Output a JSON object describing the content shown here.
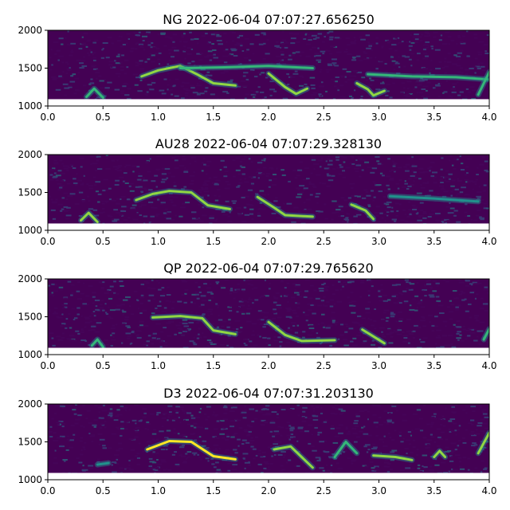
{
  "colors": {
    "background": "#440154",
    "dark": "#46085c",
    "mid": "#31688e",
    "teal": "#21918c",
    "green": "#35b779",
    "bright": "#90d743",
    "yellow": "#fde725"
  },
  "chart_data": [
    {
      "type": "heatmap",
      "title": "NG 2022-06-04 07:07:27.656250",
      "xlabel": "",
      "ylabel": "",
      "xlim": [
        0.0,
        4.0
      ],
      "ylim": [
        1000,
        2000
      ],
      "x_ticks": [
        "0.0",
        "0.5",
        "1.0",
        "1.5",
        "2.0",
        "2.5",
        "3.0",
        "3.5",
        "4.0"
      ],
      "y_ticks": [
        "1000",
        "1500",
        "2000"
      ],
      "colormap": "viridis",
      "grid": false,
      "masked_band_hz": [
        1000,
        1090
      ],
      "features": [
        {
          "points": [
            [
              0.35,
              1120
            ],
            [
              0.42,
              1230
            ],
            [
              0.5,
              1110
            ]
          ],
          "intensity": 0.6
        },
        {
          "points": [
            [
              0.85,
              1390
            ],
            [
              1.0,
              1470
            ],
            [
              1.2,
              1530
            ],
            [
              1.35,
              1420
            ],
            [
              1.5,
              1300
            ],
            [
              1.7,
              1270
            ]
          ],
          "intensity": 0.7
        },
        {
          "points": [
            [
              1.2,
              1500
            ],
            [
              1.6,
              1510
            ],
            [
              2.0,
              1530
            ],
            [
              2.4,
              1500
            ]
          ],
          "intensity": 0.5
        },
        {
          "points": [
            [
              2.0,
              1430
            ],
            [
              2.15,
              1250
            ],
            [
              2.25,
              1160
            ],
            [
              2.35,
              1230
            ]
          ],
          "intensity": 0.8
        },
        {
          "points": [
            [
              2.8,
              1300
            ],
            [
              2.9,
              1220
            ],
            [
              2.95,
              1140
            ],
            [
              3.05,
              1200
            ]
          ],
          "intensity": 0.8
        },
        {
          "points": [
            [
              2.9,
              1420
            ],
            [
              3.3,
              1390
            ],
            [
              3.7,
              1380
            ],
            [
              4.0,
              1350
            ]
          ],
          "intensity": 0.5
        },
        {
          "points": [
            [
              3.9,
              1150
            ],
            [
              3.95,
              1300
            ],
            [
              4.0,
              1450
            ]
          ],
          "intensity": 0.6
        }
      ]
    },
    {
      "type": "heatmap",
      "title": "AU28 2022-06-04 07:07:29.328130",
      "xlabel": "",
      "ylabel": "",
      "xlim": [
        0.0,
        4.0
      ],
      "ylim": [
        1000,
        2000
      ],
      "x_ticks": [
        "0.0",
        "0.5",
        "1.0",
        "1.5",
        "2.0",
        "2.5",
        "3.0",
        "3.5",
        "4.0"
      ],
      "y_ticks": [
        "1000",
        "1500",
        "2000"
      ],
      "colormap": "viridis",
      "grid": false,
      "masked_band_hz": [
        1000,
        1090
      ],
      "features": [
        {
          "points": [
            [
              0.3,
              1130
            ],
            [
              0.37,
              1230
            ],
            [
              0.45,
              1110
            ]
          ],
          "intensity": 0.8
        },
        {
          "points": [
            [
              0.8,
              1400
            ],
            [
              0.95,
              1480
            ],
            [
              1.1,
              1520
            ],
            [
              1.3,
              1500
            ],
            [
              1.45,
              1330
            ],
            [
              1.65,
              1280
            ]
          ],
          "intensity": 0.8
        },
        {
          "points": [
            [
              1.9,
              1440
            ],
            [
              2.05,
              1300
            ],
            [
              2.15,
              1200
            ],
            [
              2.4,
              1180
            ]
          ],
          "intensity": 0.8
        },
        {
          "points": [
            [
              2.75,
              1340
            ],
            [
              2.88,
              1260
            ],
            [
              2.95,
              1150
            ]
          ],
          "intensity": 0.8
        },
        {
          "points": [
            [
              3.1,
              1450
            ],
            [
              3.5,
              1420
            ],
            [
              3.9,
              1380
            ]
          ],
          "intensity": 0.4
        }
      ]
    },
    {
      "type": "heatmap",
      "title": "QP 2022-06-04 07:07:29.765620",
      "xlabel": "",
      "ylabel": "",
      "xlim": [
        0.0,
        4.0
      ],
      "ylim": [
        1000,
        2000
      ],
      "x_ticks": [
        "0.0",
        "0.5",
        "1.0",
        "1.5",
        "2.0",
        "2.5",
        "3.0",
        "3.5",
        "4.0"
      ],
      "y_ticks": [
        "1000",
        "1500",
        "2000"
      ],
      "colormap": "viridis",
      "grid": false,
      "masked_band_hz": [
        1000,
        1090
      ],
      "features": [
        {
          "points": [
            [
              0.4,
              1120
            ],
            [
              0.45,
              1200
            ],
            [
              0.5,
              1100
            ]
          ],
          "intensity": 0.5
        },
        {
          "points": [
            [
              0.95,
              1490
            ],
            [
              1.2,
              1510
            ],
            [
              1.4,
              1480
            ],
            [
              1.5,
              1320
            ],
            [
              1.7,
              1270
            ]
          ],
          "intensity": 0.8
        },
        {
          "points": [
            [
              2.0,
              1430
            ],
            [
              2.15,
              1260
            ],
            [
              2.3,
              1180
            ],
            [
              2.6,
              1190
            ]
          ],
          "intensity": 0.8
        },
        {
          "points": [
            [
              2.85,
              1330
            ],
            [
              2.95,
              1240
            ],
            [
              3.05,
              1150
            ]
          ],
          "intensity": 0.8
        },
        {
          "points": [
            [
              3.95,
              1200
            ],
            [
              4.0,
              1340
            ]
          ],
          "intensity": 0.5
        }
      ]
    },
    {
      "type": "heatmap",
      "title": "D3 2022-06-04 07:07:31.203130",
      "xlabel": "",
      "ylabel": "",
      "xlim": [
        0.0,
        4.0
      ],
      "ylim": [
        1000,
        2000
      ],
      "x_ticks": [
        "0.0",
        "0.5",
        "1.0",
        "1.5",
        "2.0",
        "2.5",
        "3.0",
        "3.5",
        "4.0"
      ],
      "y_ticks": [
        "1000",
        "1500",
        "2000"
      ],
      "colormap": "viridis",
      "grid": false,
      "masked_band_hz": [
        1000,
        1090
      ],
      "features": [
        {
          "points": [
            [
              0.45,
              1200
            ],
            [
              0.55,
              1220
            ]
          ],
          "intensity": 0.4
        },
        {
          "points": [
            [
              0.9,
              1400
            ],
            [
              1.1,
              1510
            ],
            [
              1.3,
              1500
            ],
            [
              1.5,
              1310
            ],
            [
              1.7,
              1270
            ]
          ],
          "intensity": 0.9
        },
        {
          "points": [
            [
              2.05,
              1400
            ],
            [
              2.2,
              1440
            ],
            [
              2.3,
              1300
            ],
            [
              2.4,
              1160
            ]
          ],
          "intensity": 0.8
        },
        {
          "points": [
            [
              2.6,
              1300
            ],
            [
              2.7,
              1500
            ],
            [
              2.8,
              1350
            ]
          ],
          "intensity": 0.5
        },
        {
          "points": [
            [
              2.95,
              1320
            ],
            [
              3.15,
              1300
            ],
            [
              3.3,
              1260
            ]
          ],
          "intensity": 0.7
        },
        {
          "points": [
            [
              3.5,
              1300
            ],
            [
              3.55,
              1380
            ],
            [
              3.6,
              1300
            ]
          ],
          "intensity": 0.8
        },
        {
          "points": [
            [
              3.9,
              1350
            ],
            [
              4.0,
              1620
            ]
          ],
          "intensity": 0.7
        }
      ]
    }
  ]
}
